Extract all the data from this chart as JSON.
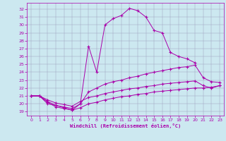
{
  "xlabel": "Windchill (Refroidissement éolien,°C)",
  "background_color": "#cce8f0",
  "line_color": "#aa00aa",
  "x_ticks": [
    0,
    1,
    2,
    3,
    4,
    5,
    6,
    7,
    8,
    9,
    10,
    11,
    12,
    13,
    14,
    15,
    16,
    17,
    18,
    19,
    20,
    21,
    22,
    23
  ],
  "ylim": [
    18.5,
    32.8
  ],
  "xlim": [
    -0.5,
    23.5
  ],
  "lines": [
    {
      "x": [
        0,
        1,
        2,
        3,
        4,
        5,
        6,
        7,
        8,
        9,
        10,
        11,
        12,
        13,
        14,
        15,
        16,
        17,
        18,
        19,
        20
      ],
      "y": [
        21.0,
        21.0,
        20.0,
        19.8,
        19.5,
        19.2,
        20.0,
        27.3,
        24.0,
        30.0,
        30.8,
        31.2,
        32.1,
        31.8,
        31.0,
        29.3,
        29.0,
        26.5,
        26.0,
        25.7,
        25.2
      ]
    },
    {
      "x": [
        0,
        1,
        2,
        3,
        4,
        5,
        6,
        7,
        8,
        9,
        10,
        11,
        12,
        13,
        14,
        15,
        16,
        17,
        18,
        19,
        20,
        21,
        22,
        23
      ],
      "y": [
        21.0,
        21.0,
        20.3,
        19.8,
        19.6,
        19.4,
        20.0,
        21.5,
        22.0,
        22.5,
        22.8,
        23.0,
        23.3,
        23.5,
        23.8,
        24.0,
        24.2,
        24.4,
        24.6,
        24.7,
        24.9,
        23.3,
        22.8,
        22.7
      ]
    },
    {
      "x": [
        0,
        1,
        2,
        3,
        4,
        5,
        6,
        7,
        8,
        9,
        10,
        11,
        12,
        13,
        14,
        15,
        16,
        17,
        18,
        19,
        20,
        21,
        22,
        23
      ],
      "y": [
        21.0,
        21.0,
        20.5,
        20.1,
        19.9,
        19.7,
        20.3,
        20.8,
        21.0,
        21.3,
        21.5,
        21.7,
        21.9,
        22.0,
        22.2,
        22.3,
        22.5,
        22.6,
        22.7,
        22.8,
        22.9,
        22.3,
        22.0,
        22.3
      ]
    },
    {
      "x": [
        0,
        1,
        2,
        3,
        4,
        5,
        6,
        7,
        8,
        9,
        10,
        11,
        12,
        13,
        14,
        15,
        16,
        17,
        18,
        19,
        20,
        21,
        22,
        23
      ],
      "y": [
        21.0,
        21.0,
        20.2,
        19.6,
        19.4,
        19.2,
        19.5,
        20.0,
        20.2,
        20.5,
        20.7,
        20.9,
        21.0,
        21.2,
        21.3,
        21.5,
        21.6,
        21.7,
        21.8,
        21.9,
        22.0,
        22.0,
        22.1,
        22.3
      ]
    }
  ],
  "yticks": [
    19,
    20,
    21,
    22,
    23,
    24,
    25,
    26,
    27,
    28,
    29,
    30,
    31,
    32
  ]
}
